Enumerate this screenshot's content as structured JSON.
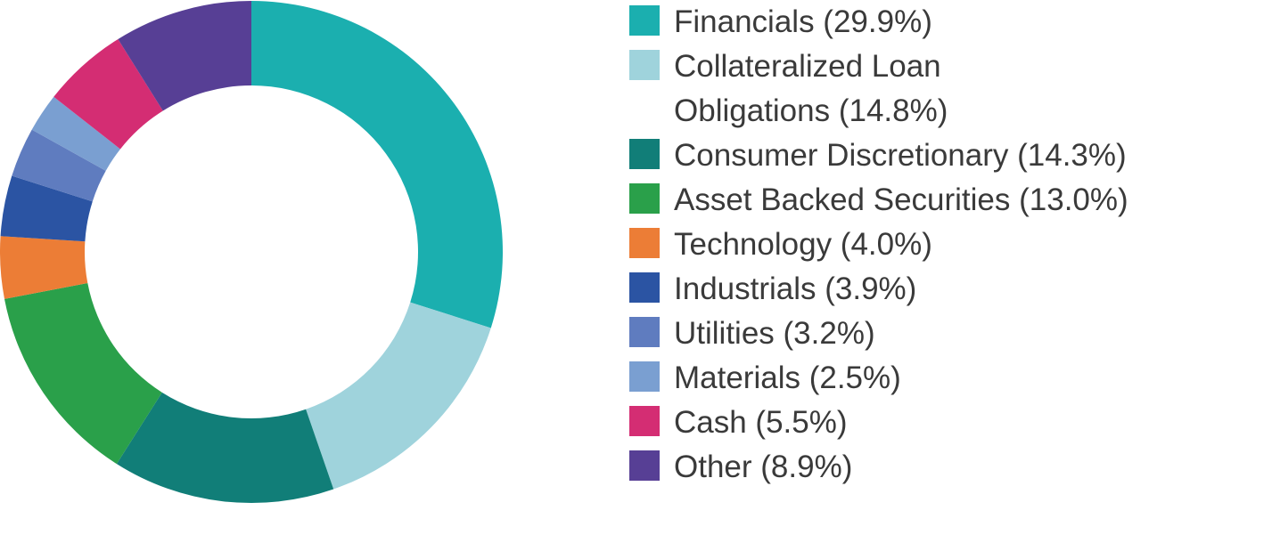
{
  "chart_data": {
    "type": "pie",
    "donut": true,
    "categories": [
      "Financials (29.9%)",
      "Collateralized Loan Obligations (14.8%)",
      "Consumer Discretionary (14.3%)",
      "Asset Backed Securities (13.0%)",
      "Technology (4.0%)",
      "Industrials (3.9%)",
      "Utilities (3.2%)",
      "Materials (2.5%)",
      "Cash (5.5%)",
      "Other (8.9%)"
    ],
    "values": [
      29.9,
      14.8,
      14.3,
      13.0,
      4.0,
      3.9,
      3.2,
      2.5,
      5.5,
      8.9
    ],
    "colors": [
      "#1bafaf",
      "#9fd3dc",
      "#117e78",
      "#2aa04a",
      "#ec7d36",
      "#2b54a3",
      "#5f7cbf",
      "#7a9fd1",
      "#d42d73",
      "#573f95"
    ],
    "title": "",
    "legend_position": "right"
  }
}
